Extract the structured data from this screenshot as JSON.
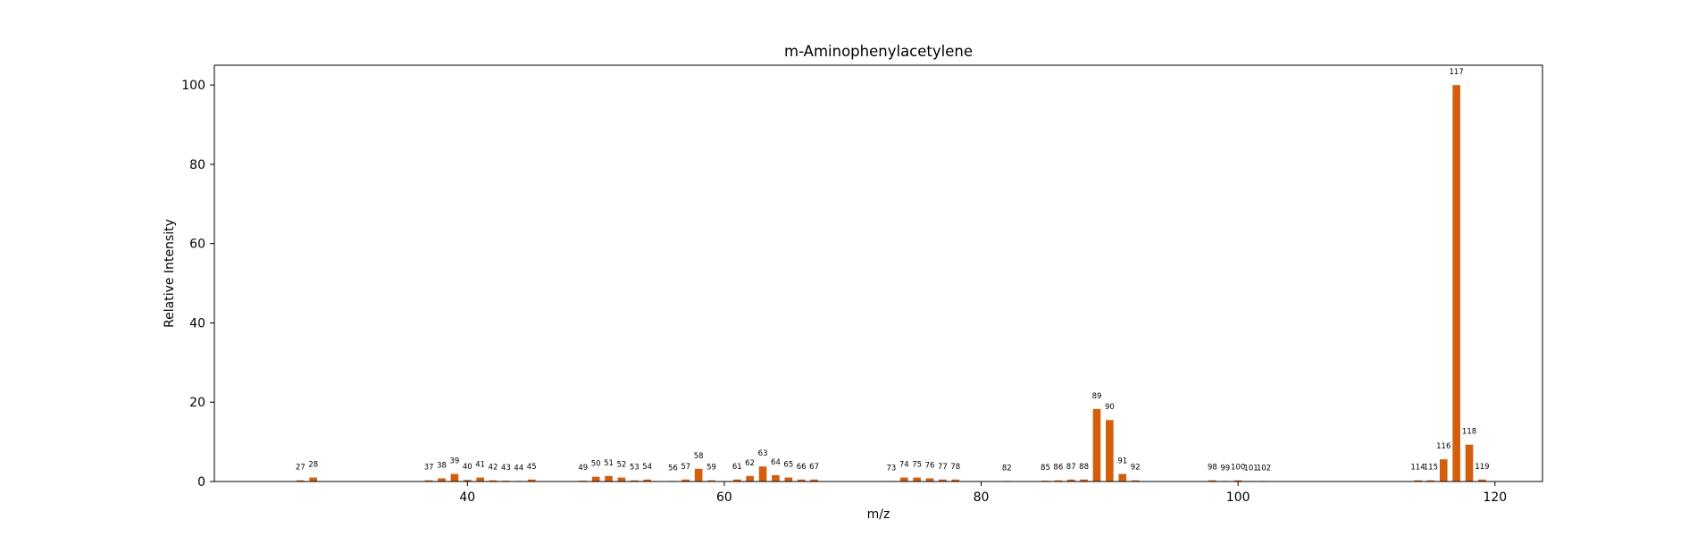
{
  "chart_data": {
    "type": "bar",
    "title": "m-Aminophenylacetylene",
    "xlabel": "m/z",
    "ylabel": "Relative Intensity",
    "xlim": [
      20.3,
      123.7
    ],
    "ylim": [
      0,
      105
    ],
    "xticks": [
      40,
      60,
      80,
      100,
      120
    ],
    "yticks": [
      0,
      20,
      40,
      60,
      80,
      100
    ],
    "grid": false,
    "legend": "none",
    "bar_color": "#d35f0c",
    "x": [
      27,
      28,
      37,
      38,
      39,
      40,
      41,
      42,
      43,
      44,
      45,
      49,
      50,
      51,
      52,
      53,
      54,
      56,
      57,
      58,
      59,
      61,
      62,
      63,
      64,
      65,
      66,
      67,
      73,
      74,
      75,
      76,
      77,
      78,
      82,
      85,
      86,
      87,
      88,
      89,
      90,
      91,
      92,
      98,
      99,
      100,
      101,
      102,
      114,
      115,
      116,
      117,
      118,
      119
    ],
    "values": [
      0.3,
      1.0,
      0.3,
      0.8,
      1.9,
      0.4,
      1.0,
      0.3,
      0.2,
      0.1,
      0.5,
      0.2,
      1.2,
      1.4,
      1.0,
      0.3,
      0.5,
      0.1,
      0.5,
      3.2,
      0.3,
      0.5,
      1.4,
      3.8,
      1.6,
      1.0,
      0.5,
      0.5,
      0.1,
      1.0,
      1.0,
      0.8,
      0.5,
      0.5,
      0.1,
      0.2,
      0.3,
      0.5,
      0.5,
      18.3,
      15.5,
      1.9,
      0.3,
      0.3,
      0.1,
      0.3,
      0.1,
      0.1,
      0.3,
      0.3,
      5.6,
      100.0,
      9.3,
      0.5
    ]
  }
}
